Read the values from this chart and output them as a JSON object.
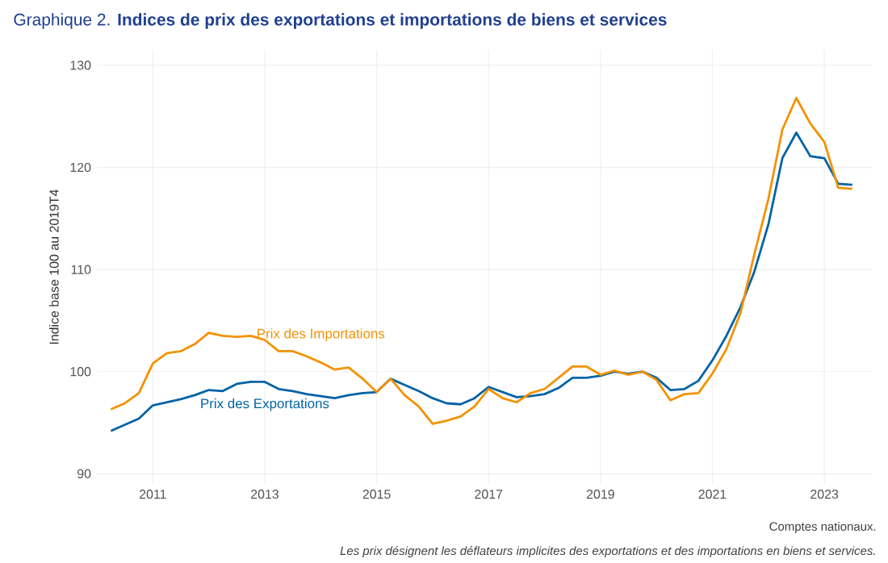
{
  "chart_data": {
    "type": "line",
    "title": "Graphique 2. **Indices de prix des exportations et importations de biens et services**",
    "ylabel": "Indice base 100 au 2019T4",
    "x": [
      2010.25,
      2010.5,
      2010.75,
      2011.0,
      2011.25,
      2011.5,
      2011.75,
      2012.0,
      2012.25,
      2012.5,
      2012.75,
      2013.0,
      2013.25,
      2013.5,
      2013.75,
      2014.0,
      2014.25,
      2014.5,
      2014.75,
      2015.0,
      2015.25,
      2015.5,
      2015.75,
      2016.0,
      2016.25,
      2016.5,
      2016.75,
      2017.0,
      2017.25,
      2017.5,
      2017.75,
      2018.0,
      2018.25,
      2018.5,
      2018.75,
      2019.0,
      2019.25,
      2019.5,
      2019.75,
      2020.0,
      2020.25,
      2020.5,
      2020.75,
      2021.0,
      2021.25,
      2021.5,
      2021.75,
      2022.0,
      2022.25,
      2022.5,
      2022.75,
      2023.0,
      2023.25,
      2023.5
    ],
    "series": [
      {
        "name": "Prix des Exportations",
        "color": "#0063a6",
        "values": [
          94.2,
          94.8,
          95.4,
          96.7,
          97.0,
          97.3,
          97.7,
          98.2,
          98.1,
          98.8,
          99.0,
          99.0,
          98.3,
          98.1,
          97.8,
          97.6,
          97.4,
          97.7,
          97.9,
          98.0,
          99.3,
          98.7,
          98.1,
          97.4,
          96.9,
          96.8,
          97.4,
          98.5,
          98.0,
          97.5,
          97.6,
          97.8,
          98.4,
          99.4,
          99.4,
          99.6,
          100.0,
          99.8,
          100.0,
          99.4,
          98.2,
          98.3,
          99.1,
          101.1,
          103.5,
          106.3,
          109.8,
          114.4,
          120.9,
          123.4,
          121.1,
          120.9,
          118.4,
          118.3
        ]
      },
      {
        "name": "Prix des Importations",
        "color": "#f39200",
        "values": [
          96.3,
          96.9,
          97.9,
          100.8,
          101.8,
          102.0,
          102.7,
          103.8,
          103.5,
          103.4,
          103.5,
          103.1,
          102.0,
          102.0,
          101.5,
          100.9,
          100.2,
          100.4,
          99.3,
          98.0,
          99.3,
          97.7,
          96.6,
          94.9,
          95.2,
          95.6,
          96.6,
          98.3,
          97.4,
          97.0,
          97.9,
          98.3,
          99.4,
          100.5,
          100.5,
          99.7,
          100.1,
          99.7,
          100.0,
          99.2,
          97.2,
          97.8,
          97.9,
          99.8,
          102.2,
          105.7,
          111.5,
          116.9,
          123.7,
          126.8,
          124.3,
          122.5,
          118.0,
          117.9
        ]
      }
    ],
    "xlim": [
      2010.0,
      2023.85
    ],
    "ylim": [
      89,
      131.5
    ],
    "xticks": [
      2011,
      2013,
      2015,
      2017,
      2019,
      2021,
      2023
    ],
    "yticks": [
      90,
      100,
      110,
      120,
      130
    ],
    "grid": true,
    "line_style": "solid",
    "annotations": [
      "Comptes nationaux.",
      "*Les prix désignent les déflateurs implicites des exportations et des importations en biens et services.*"
    ]
  }
}
